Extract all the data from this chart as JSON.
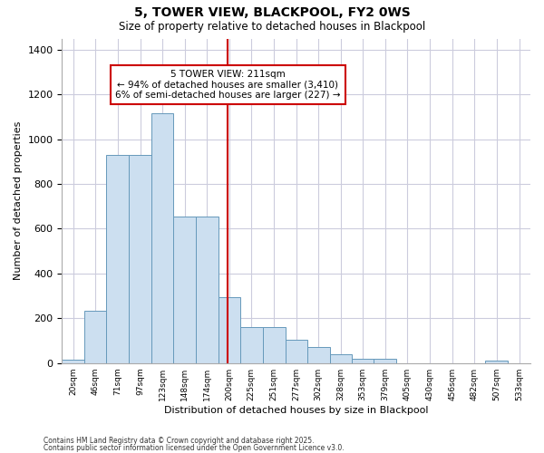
{
  "title": "5, TOWER VIEW, BLACKPOOL, FY2 0WS",
  "subtitle": "Size of property relative to detached houses in Blackpool",
  "xlabel": "Distribution of detached houses by size in Blackpool",
  "ylabel": "Number of detached properties",
  "bin_labels": [
    "20sqm",
    "46sqm",
    "71sqm",
    "97sqm",
    "123sqm",
    "148sqm",
    "174sqm",
    "200sqm",
    "225sqm",
    "251sqm",
    "277sqm",
    "302sqm",
    "328sqm",
    "353sqm",
    "379sqm",
    "405sqm",
    "430sqm",
    "456sqm",
    "482sqm",
    "507sqm",
    "533sqm"
  ],
  "bar_heights": [
    15,
    235,
    930,
    930,
    1115,
    655,
    655,
    295,
    160,
    160,
    105,
    70,
    40,
    20,
    20,
    0,
    0,
    0,
    0,
    10,
    0
  ],
  "bin_edges": [
    20,
    46,
    71,
    97,
    123,
    148,
    174,
    200,
    225,
    251,
    277,
    302,
    328,
    353,
    379,
    405,
    430,
    456,
    482,
    507,
    533
  ],
  "property_size": 211,
  "pct_smaller": 94,
  "count_smaller": 3410,
  "pct_larger": 6,
  "count_larger": 227,
  "bar_color": "#ccdff0",
  "bar_edge_color": "#6699bb",
  "vline_color": "#cc0000",
  "annotation_box_edge_color": "#cc0000",
  "background_color": "#ffffff",
  "grid_color": "#ccccdd",
  "ylim": [
    0,
    1450
  ],
  "yticks": [
    0,
    200,
    400,
    600,
    800,
    1000,
    1200,
    1400
  ],
  "footnote1": "Contains HM Land Registry data © Crown copyright and database right 2025.",
  "footnote2": "Contains public sector information licensed under the Open Government Licence v3.0."
}
